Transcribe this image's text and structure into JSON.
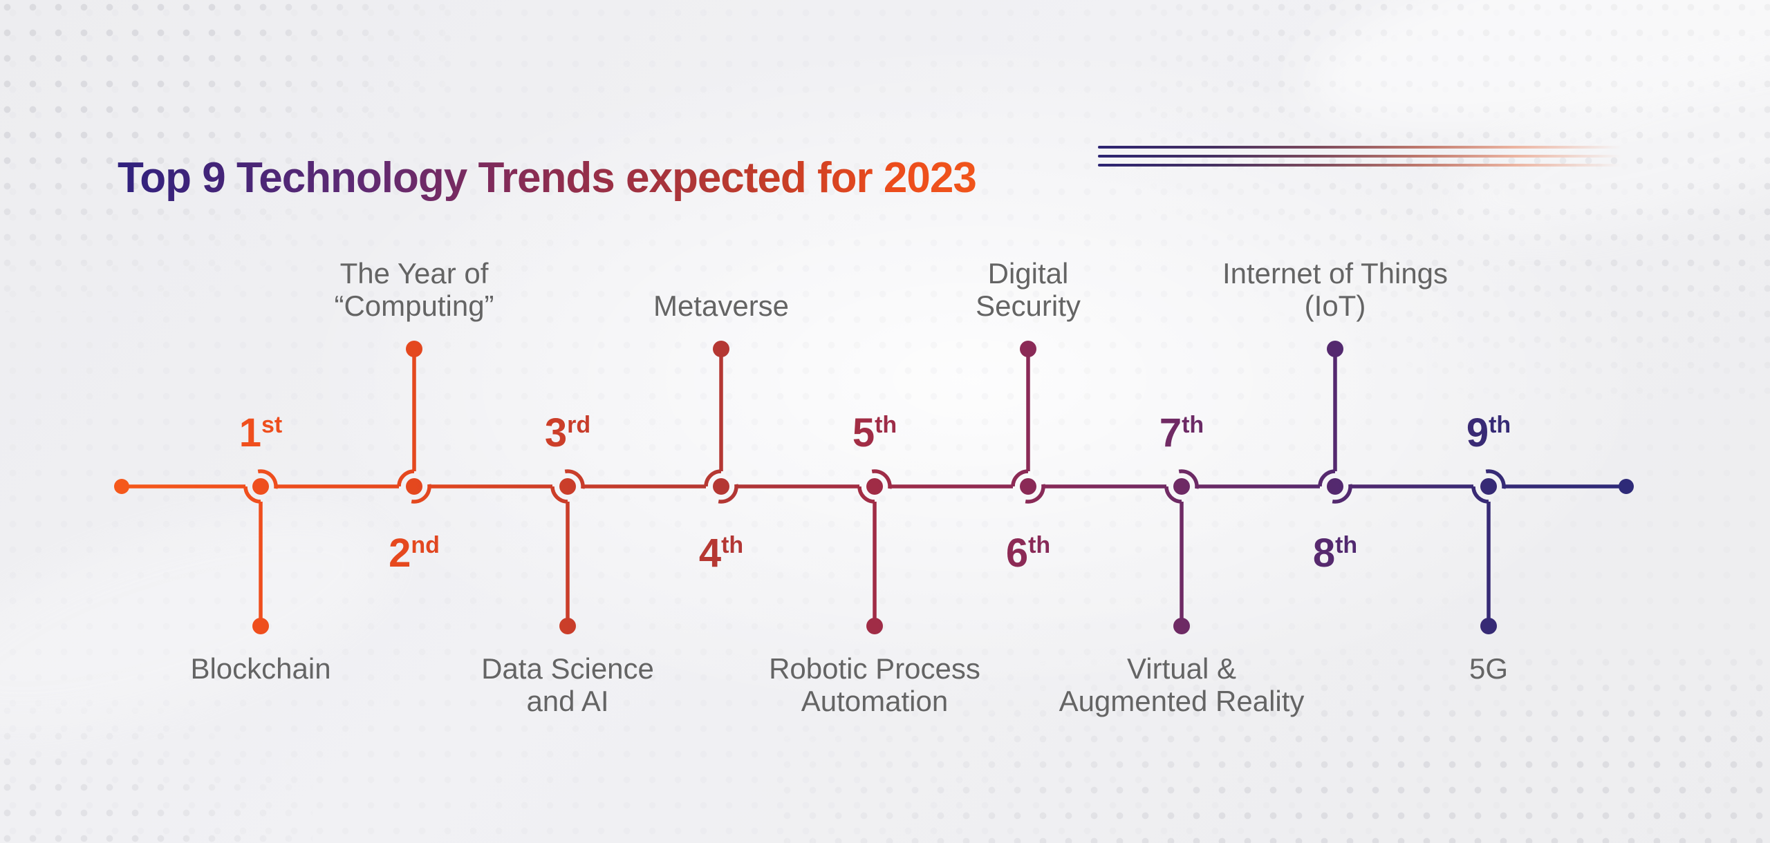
{
  "title": {
    "text": "Top 9 Technology Trends expected for 2023"
  },
  "palette": {
    "background": "#f0f0f2",
    "label_gray": "#646464",
    "title_gradient": [
      "#30217e",
      "#5e2a73",
      "#842b57",
      "#a3323e",
      "#c63d27",
      "#ec4c1c"
    ],
    "line_gradient": [
      "#f5581b",
      "#ef4e1d",
      "#e5481e",
      "#c93d2a",
      "#b43733",
      "#a02c46",
      "#8b2a56",
      "#6f2a64",
      "#53296f",
      "#362a75",
      "#2e2a78"
    ]
  },
  "decoration": {
    "lines": [
      "gradient-rule",
      "gradient-rule",
      "gradient-rule"
    ]
  },
  "timeline": {
    "items": [
      {
        "rank": "1",
        "suffix": "st",
        "side": "down",
        "color": "#ef4e1d",
        "label_lines": [
          "Blockchain"
        ]
      },
      {
        "rank": "2",
        "suffix": "nd",
        "side": "up",
        "color": "#e5481e",
        "label_lines": [
          "The Year of",
          "“Computing”"
        ]
      },
      {
        "rank": "3",
        "suffix": "rd",
        "side": "down",
        "color": "#c93d2a",
        "label_lines": [
          "Data Science",
          "and AI"
        ]
      },
      {
        "rank": "4",
        "suffix": "th",
        "side": "up",
        "color": "#b43733",
        "label_lines": [
          "Metaverse"
        ]
      },
      {
        "rank": "5",
        "suffix": "th",
        "side": "down",
        "color": "#a02c46",
        "label_lines": [
          "Robotic Process",
          "Automation"
        ]
      },
      {
        "rank": "6",
        "suffix": "th",
        "side": "up",
        "color": "#8b2a56",
        "label_lines": [
          "Digital",
          "Security"
        ]
      },
      {
        "rank": "7",
        "suffix": "th",
        "side": "down",
        "color": "#6f2a64",
        "label_lines": [
          "Virtual &",
          "Augmented Reality"
        ]
      },
      {
        "rank": "8",
        "suffix": "th",
        "side": "up",
        "color": "#53296f",
        "label_lines": [
          "Internet of Things",
          "(IoT)"
        ]
      },
      {
        "rank": "9",
        "suffix": "th",
        "side": "down",
        "color": "#362a75",
        "label_lines": [
          "5G"
        ]
      }
    ]
  }
}
